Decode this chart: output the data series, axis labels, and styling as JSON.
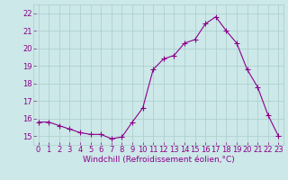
{
  "x": [
    0,
    1,
    2,
    3,
    4,
    5,
    6,
    7,
    8,
    9,
    10,
    11,
    12,
    13,
    14,
    15,
    16,
    17,
    18,
    19,
    20,
    21,
    22,
    23
  ],
  "y": [
    15.8,
    15.8,
    15.6,
    15.4,
    15.2,
    15.1,
    15.1,
    14.85,
    14.95,
    15.8,
    16.6,
    18.8,
    19.4,
    19.6,
    20.3,
    20.5,
    21.4,
    21.8,
    21.0,
    20.3,
    18.8,
    17.8,
    16.2,
    15.0
  ],
  "line_color": "#8b008b",
  "marker": "+",
  "marker_size": 4,
  "background_color": "#cce8e8",
  "grid_color": "#aacccc",
  "xlabel": "Windchill (Refroidissement éolien,°C)",
  "xlabel_color": "#8b008b",
  "xlabel_fontsize": 6.5,
  "tick_label_color": "#8b008b",
  "tick_fontsize": 6,
  "ylim": [
    14.5,
    22.5
  ],
  "xlim": [
    -0.5,
    23.5
  ],
  "yticks": [
    15,
    16,
    17,
    18,
    19,
    20,
    21,
    22
  ],
  "xticks": [
    0,
    1,
    2,
    3,
    4,
    5,
    6,
    7,
    8,
    9,
    10,
    11,
    12,
    13,
    14,
    15,
    16,
    17,
    18,
    19,
    20,
    21,
    22,
    23
  ]
}
